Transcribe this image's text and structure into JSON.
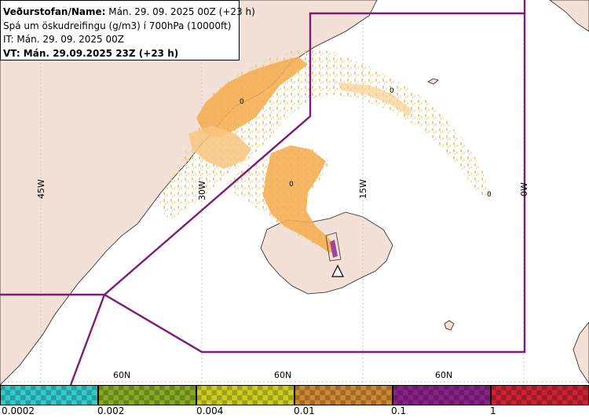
{
  "info": {
    "line1_bold": "Veðurstofan/Name:",
    "line1_rest": " Mán. 29. 09. 2025 00Z (+23 h)",
    "line2": "Spá um öskudreifingu (g/m3) í 700hPa (10000ft)",
    "line3": "IT: Mán. 29. 09. 2025 00Z",
    "line4": "VT: Mán. 29.09.2025 23Z (+23 h)"
  },
  "map": {
    "longitude_labels": [
      "45W",
      "30W",
      "15W",
      "0W"
    ],
    "latitude_labels": [
      "60N",
      "60N",
      "60N"
    ],
    "contour_labels": [
      "0",
      "0",
      "0",
      "0"
    ],
    "colors": {
      "ocean": "#ffffff",
      "land": "#f3e1d7",
      "ash_light": "#f8cf8f",
      "ash_medium": "#f5ab4c",
      "boundary": "#7b1c7b",
      "graticule": "#b8b8b8"
    },
    "volcano_icon": "volcano-triangle-icon"
  },
  "legend": {
    "labels": [
      "0.0002",
      "0.002",
      "0.004",
      "0.01",
      "0.1",
      "1"
    ],
    "colors": [
      "#33cccc",
      "#88aa22",
      "#cccc22",
      "#cc8833",
      "#882288",
      "#cc2233"
    ]
  }
}
